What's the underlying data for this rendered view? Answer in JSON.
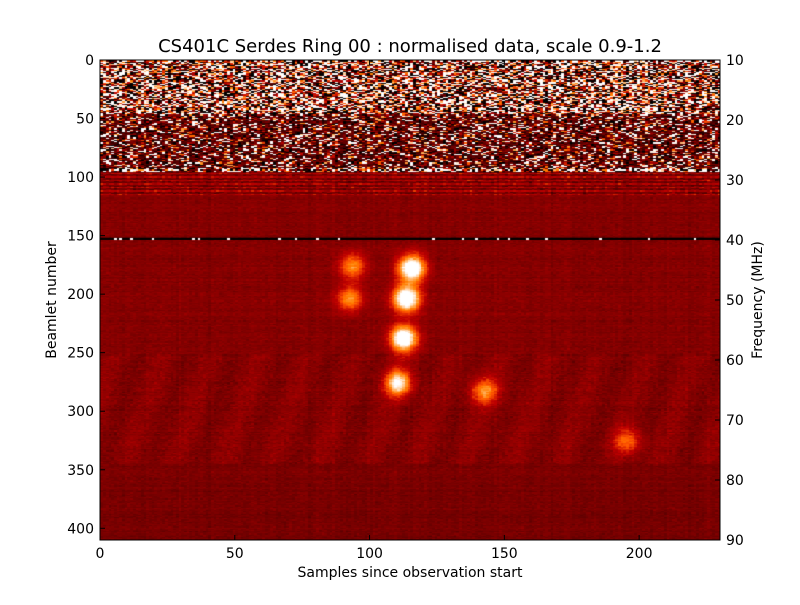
{
  "chart_data": {
    "type": "heatmap",
    "title": "CS401C Serdes Ring 00 : normalised data, scale 0.9-1.2",
    "xlabel": "Samples since observation start",
    "ylabel": "Beamlet number",
    "y2label": "Frequency (MHz)",
    "colormap": "gist_heat",
    "color_scale": [
      0.9,
      1.2
    ],
    "xlim": [
      0,
      230
    ],
    "ylim": [
      0,
      410
    ],
    "y2lim": [
      10,
      90
    ],
    "x_ticks": [
      0,
      50,
      100,
      150,
      200
    ],
    "y_ticks": [
      0,
      50,
      100,
      150,
      200,
      250,
      300,
      350,
      400
    ],
    "y2_ticks": [
      10,
      20,
      30,
      40,
      50,
      60,
      70,
      80,
      90
    ],
    "dims": {
      "samples": 230,
      "beamlets": 410
    },
    "features": {
      "noisy_region": {
        "beamlets": [
          0,
          95
        ],
        "description": "high-variance RFI band"
      },
      "striped_region": {
        "beamlets": [
          95,
          115
        ]
      },
      "dark_line_beamlet": 152,
      "bright_bursts": [
        {
          "sample": 115,
          "beamlet": 177,
          "value": 1.2
        },
        {
          "sample": 113,
          "beamlet": 203,
          "value": 1.2
        },
        {
          "sample": 112,
          "beamlet": 237,
          "value": 1.2
        },
        {
          "sample": 110,
          "beamlet": 275,
          "value": 1.15
        },
        {
          "sample": 93,
          "beamlet": 175,
          "value": 1.1
        },
        {
          "sample": 92,
          "beamlet": 203,
          "value": 1.1
        },
        {
          "sample": 142,
          "beamlet": 282,
          "value": 1.1
        },
        {
          "sample": 195,
          "beamlet": 325,
          "value": 1.08
        }
      ]
    }
  }
}
